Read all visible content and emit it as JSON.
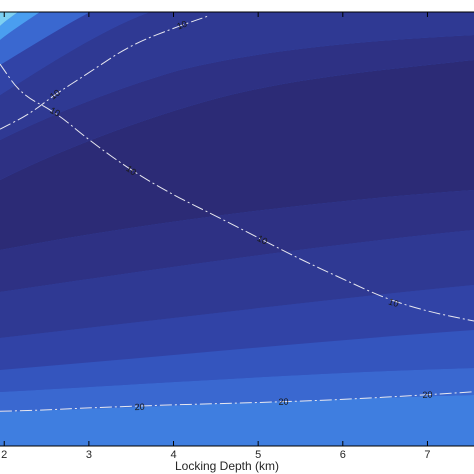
{
  "chart_data": {
    "type": "contour",
    "xlabel": "Locking Depth (km)",
    "ylabel": "",
    "title": "",
    "xlim": [
      1.95,
      7.55
    ],
    "x_ticks": [
      2,
      3,
      4,
      5,
      6,
      7
    ],
    "x_tick_labels": [
      "2",
      "3",
      "4",
      "5",
      "6",
      "7"
    ],
    "colormap": [
      "#2c2b76",
      "#2e3184",
      "#2f3993",
      "#3143a6",
      "#3455be",
      "#3a68d0",
      "#3f7ee0",
      "#4a9ef0",
      "#7dd0f2"
    ],
    "contour_lines": [
      {
        "level": 10,
        "label": "10",
        "points": [
          [
            1.95,
            0.88
          ],
          [
            2.2,
            0.81
          ],
          [
            2.6,
            0.77
          ],
          [
            3.0,
            0.705
          ],
          [
            3.5,
            0.635
          ],
          [
            4.0,
            0.578
          ],
          [
            4.5,
            0.53
          ],
          [
            5.0,
            0.48
          ],
          [
            5.5,
            0.43
          ],
          [
            6.0,
            0.385
          ],
          [
            6.5,
            0.34
          ],
          [
            7.0,
            0.31
          ],
          [
            7.55,
            0.288
          ]
        ],
        "label_positions": [
          [
            2.6,
            0.77
          ],
          [
            3.5,
            0.635
          ],
          [
            5.05,
            0.475
          ],
          [
            6.6,
            0.33
          ]
        ]
      },
      {
        "level": 20,
        "label": "20",
        "points": [
          [
            1.95,
            0.08
          ],
          [
            2.5,
            0.083
          ],
          [
            3.0,
            0.088
          ],
          [
            4.0,
            0.095
          ],
          [
            5.0,
            0.1
          ],
          [
            6.0,
            0.107
          ],
          [
            7.0,
            0.118
          ],
          [
            7.55,
            0.125
          ]
        ],
        "label_positions": [
          [
            3.6,
            0.09
          ],
          [
            5.3,
            0.102
          ],
          [
            7.0,
            0.118
          ]
        ]
      },
      {
        "level": 10,
        "label": "10",
        "points": [
          [
            1.95,
            0.73
          ],
          [
            2.3,
            0.765
          ],
          [
            2.6,
            0.81
          ],
          [
            3.0,
            0.86
          ],
          [
            3.5,
            0.925
          ],
          [
            4.1,
            0.97
          ],
          [
            4.4,
            0.99
          ]
        ],
        "label_positions": [
          [
            2.6,
            0.81
          ],
          [
            4.1,
            0.97
          ]
        ]
      }
    ]
  }
}
